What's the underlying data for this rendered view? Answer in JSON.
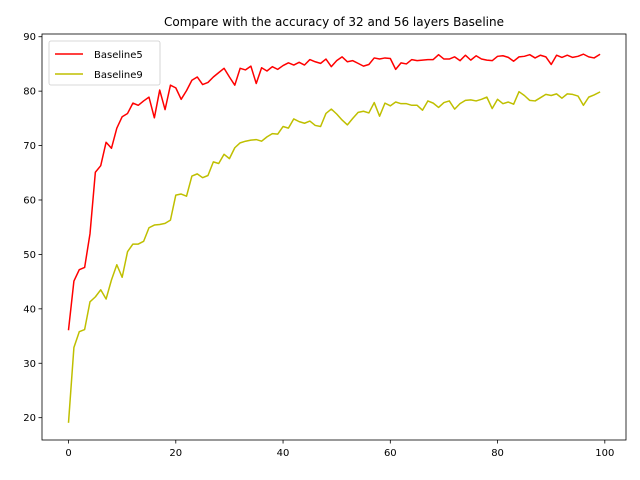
{
  "chart_data": {
    "type": "line",
    "title": "Compare with the accuracy of 32 and 56 layers Baseline",
    "xlabel": "",
    "ylabel": "",
    "xlim": [
      -4.95,
      103.95
    ],
    "ylim": [
      15.9,
      90.5
    ],
    "xticks": [
      0,
      20,
      40,
      60,
      80,
      100
    ],
    "yticks": [
      20,
      30,
      40,
      50,
      60,
      70,
      80,
      90
    ],
    "grid": false,
    "legend_position": "top-left",
    "x": [
      0,
      1,
      2,
      3,
      4,
      5,
      6,
      7,
      8,
      9,
      10,
      11,
      12,
      13,
      14,
      15,
      16,
      17,
      18,
      19,
      20,
      21,
      22,
      23,
      24,
      25,
      26,
      27,
      28,
      29,
      30,
      31,
      32,
      33,
      34,
      35,
      36,
      37,
      38,
      39,
      40,
      41,
      42,
      43,
      44,
      45,
      46,
      47,
      48,
      49,
      50,
      51,
      52,
      53,
      54,
      55,
      56,
      57,
      58,
      59,
      60,
      61,
      62,
      63,
      64,
      65,
      66,
      67,
      68,
      69,
      70,
      71,
      72,
      73,
      74,
      75,
      76,
      77,
      78,
      79,
      80,
      81,
      82,
      83,
      84,
      85,
      86,
      87,
      88,
      89,
      90,
      91,
      92,
      93,
      94,
      95,
      96,
      97,
      98,
      99
    ],
    "series": [
      {
        "name": "Baseline5",
        "color": "#ff0000",
        "values": [
          36.2,
          45.1,
          47.2,
          47.6,
          53.8,
          65.1,
          66.3,
          70.6,
          69.5,
          73.2,
          75.3,
          75.9,
          77.8,
          77.4,
          78.2,
          78.9,
          75.1,
          80.2,
          76.6,
          81.1,
          80.6,
          78.5,
          80.1,
          82.0,
          82.6,
          81.2,
          81.6,
          82.6,
          83.4,
          84.2,
          82.6,
          81.1,
          84.2,
          83.9,
          84.6,
          81.4,
          84.3,
          83.7,
          84.5,
          84.0,
          84.7,
          85.2,
          84.8,
          85.3,
          84.8,
          85.8,
          85.4,
          85.1,
          85.9,
          84.5,
          85.6,
          86.3,
          85.4,
          85.6,
          85.1,
          84.6,
          84.9,
          86.1,
          85.9,
          86.1,
          86.0,
          84.0,
          85.2,
          85.0,
          85.8,
          85.6,
          85.7,
          85.8,
          85.8,
          86.7,
          85.9,
          85.9,
          86.3,
          85.6,
          86.6,
          85.7,
          86.5,
          85.9,
          85.7,
          85.6,
          86.4,
          86.5,
          86.2,
          85.5,
          86.3,
          86.4,
          86.7,
          86.1,
          86.6,
          86.3,
          84.9,
          86.6,
          86.2,
          86.6,
          86.2,
          86.4,
          86.8,
          86.3,
          86.1,
          86.7
        ]
      },
      {
        "name": "Baseline9",
        "color": "#bfbf00",
        "values": [
          19.2,
          32.9,
          35.8,
          36.2,
          41.3,
          42.2,
          43.5,
          41.8,
          45.3,
          48.1,
          45.8,
          50.5,
          51.9,
          51.9,
          52.4,
          54.9,
          55.4,
          55.5,
          55.7,
          56.3,
          60.9,
          61.1,
          60.7,
          64.4,
          64.8,
          64.1,
          64.5,
          67.0,
          66.7,
          68.4,
          67.6,
          69.6,
          70.5,
          70.8,
          71.0,
          71.1,
          70.8,
          71.6,
          72.2,
          72.1,
          73.5,
          73.2,
          74.9,
          74.4,
          74.1,
          74.5,
          73.7,
          73.5,
          75.9,
          76.7,
          75.8,
          74.7,
          73.8,
          75.0,
          76.1,
          76.3,
          76.0,
          77.9,
          75.4,
          77.8,
          77.3,
          78.0,
          77.7,
          77.7,
          77.4,
          77.4,
          76.5,
          78.2,
          77.8,
          77.0,
          77.9,
          78.2,
          76.7,
          77.7,
          78.3,
          78.4,
          78.2,
          78.5,
          78.9,
          76.8,
          78.5,
          77.7,
          78.0,
          77.6,
          79.9,
          79.2,
          78.3,
          78.2,
          78.8,
          79.4,
          79.2,
          79.5,
          78.7,
          79.5,
          79.4,
          79.1,
          77.4,
          78.9,
          79.3,
          79.8
        ]
      }
    ]
  }
}
